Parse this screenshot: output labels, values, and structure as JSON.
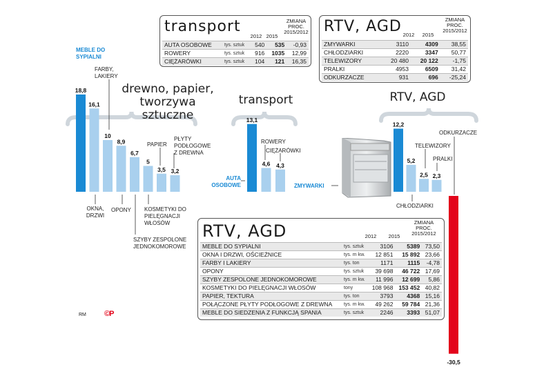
{
  "chart_data": [
    {
      "type": "bar",
      "title": "drewno, papier, tworzywa sztuczne",
      "categories": [
        "MEBLE DO SYPIALNI",
        "OKNA, DRZWI",
        "FARBY, LAKIERY",
        "OPONY",
        "SZYBY ZESPOLONE JEDNOKOMOROWE",
        "KOSMETYKI DO PIELĘGNACJI WŁOSÓW",
        "PAPIER",
        "PŁYTY PODŁOGOWE Z DREWNA"
      ],
      "values": [
        18.8,
        16.1,
        10,
        8.9,
        6.7,
        5,
        3.5,
        3.2
      ],
      "value_labels": [
        "18,8",
        "16,1",
        "10",
        "8,9",
        "6,7",
        "5",
        "3,5",
        "3,2"
      ]
    },
    {
      "type": "bar",
      "title": "transport",
      "categories": [
        "AUTA OSOBOWE",
        "ROWERY",
        "CIĘŻARÓWKI"
      ],
      "values": [
        13.1,
        4.6,
        4.3
      ],
      "value_labels": [
        "13,1",
        "4,6",
        "4,3"
      ]
    },
    {
      "type": "bar",
      "title": "RTV, AGD",
      "categories": [
        "ZMYWARKI",
        "CHŁODZIARKI",
        "TELEWIZORY",
        "PRALKI",
        "ODKURZACZE"
      ],
      "values": [
        12.2,
        5.2,
        2.5,
        2.3,
        -30.5
      ],
      "value_labels": [
        "12,2",
        "5,2",
        "2,5",
        "2,3",
        "-30,5"
      ]
    }
  ],
  "colors": {
    "highlight": "#1a8ad4",
    "bar": "#a9d0ee",
    "negative": "#e3051b",
    "brace": "#cfd6dc"
  },
  "tables": {
    "transport": {
      "title": "transport",
      "col_2012": "2012",
      "col_2015": "2015",
      "col_change": "ZMIANA PROC. 2015/2012",
      "rows": [
        {
          "name": "AUTA OSOBOWE",
          "unit": "tys. sztuk",
          "v2012": "540",
          "v2015": "535",
          "change": "-0,93"
        },
        {
          "name": "ROWERY",
          "unit": "tys. sztuk",
          "v2012": "916",
          "v2015": "1035",
          "change": "12,99"
        },
        {
          "name": "CIĘŻARÓWKI",
          "unit": "tys. sztuk",
          "v2012": "104",
          "v2015": "121",
          "change": "16,35"
        }
      ]
    },
    "rtv_top": {
      "title": "RTV, AGD",
      "col_2012": "2012",
      "col_2015": "2015",
      "col_change": "ZMIANA PROC. 2015/2012",
      "rows": [
        {
          "name": "ZMYWARKI",
          "v2012": "3110",
          "v2015": "4309",
          "change": "38,55"
        },
        {
          "name": "CHŁODZIARKI",
          "v2012": "2220",
          "v2015": "3347",
          "change": "50,77"
        },
        {
          "name": "TELEWIZORY",
          "v2012": "20 480",
          "v2015": "20 122",
          "change": "-1,75"
        },
        {
          "name": "PRALKI",
          "v2012": "4953",
          "v2015": "6509",
          "change": "31,42"
        },
        {
          "name": "ODKURZACZE",
          "v2012": "931",
          "v2015": "696",
          "change": "-25,24"
        }
      ]
    },
    "rtv_bottom": {
      "title": "RTV, AGD",
      "col_2012": "2012",
      "col_2015": "2015",
      "col_change": "ZMIANA PROC. 2015/2012",
      "rows": [
        {
          "name": "MEBLE DO SYPIALNI",
          "unit": "tys. sztuk",
          "v2012": "3106",
          "v2015": "5389",
          "change": "73,50"
        },
        {
          "name": "OKNA I DRZWI, OŚCIEŻNICE",
          "unit": "tys. m kw.",
          "v2012": "12 851",
          "v2015": "15 892",
          "change": "23,66"
        },
        {
          "name": "FARBY I LAKIERY",
          "unit": "tys. ton",
          "v2012": "1171",
          "v2015": "1115",
          "change": "-4,78"
        },
        {
          "name": "OPONY",
          "unit": "tys. sztuk",
          "v2012": "39 698",
          "v2015": "46 722",
          "change": "17,69"
        },
        {
          "name": "SZYBY ZESPOLONE JEDNOKOMOROWE",
          "unit": "tys. m kw.",
          "v2012": "11 996",
          "v2015": "12 699",
          "change": "5,86"
        },
        {
          "name": "KOSMETYKI DO PIELĘGNACJI WŁOSÓW",
          "unit": "tony",
          "v2012": "108 968",
          "v2015": "153 452",
          "change": "40,82"
        },
        {
          "name": "PAPIER, TEKTURA",
          "unit": "tys. ton",
          "v2012": "3793",
          "v2015": "4368",
          "change": "15,16"
        },
        {
          "name": "POŁĄCZONE PŁYTY PODŁOGOWE Z DREWNA",
          "unit": "tys. m kw.",
          "v2012": "49 262",
          "v2015": "59 784",
          "change": "21,36"
        },
        {
          "name": "MEBLE DO SIEDZENIA Z FUNKCJĄ SPANIA",
          "unit": "tys. sztuk",
          "v2012": "2246",
          "v2015": "3393",
          "change": "51,07"
        }
      ]
    }
  },
  "headings": {
    "wood": "drewno, papier, tworzywa sztuczne",
    "transport": "transport",
    "rtv": "RTV, AGD"
  },
  "credits": {
    "initials": "RM",
    "mark": "©P"
  }
}
